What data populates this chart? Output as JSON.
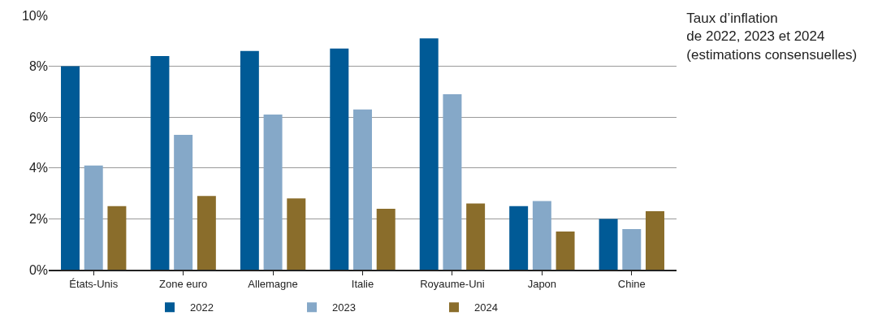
{
  "chart_data": {
    "type": "bar",
    "title": "Taux d’inflation\nde 2022, 2023 et 2024\n(estimations consensuelles)",
    "categories": [
      "États-Unis",
      "Zone euro",
      "Allemagne",
      "Italie",
      "Royaume-Uni",
      "Japon",
      "Chine"
    ],
    "series": [
      {
        "name": "2022",
        "color": "#005a96",
        "values": [
          8.0,
          8.4,
          8.6,
          8.7,
          9.1,
          2.5,
          2.0
        ]
      },
      {
        "name": "2023",
        "color": "#85a8c8",
        "values": [
          4.1,
          5.3,
          6.1,
          6.3,
          6.9,
          2.7,
          1.6
        ]
      },
      {
        "name": "2024",
        "color": "#8a6d2b",
        "values": [
          2.5,
          2.9,
          2.8,
          2.4,
          2.6,
          1.5,
          2.3
        ]
      }
    ],
    "ylim": [
      0,
      10
    ],
    "yticks": [
      {
        "value": 0,
        "label": "0%"
      },
      {
        "value": 2,
        "label": "2%"
      },
      {
        "value": 4,
        "label": "4%"
      },
      {
        "value": 6,
        "label": "6%"
      },
      {
        "value": 8,
        "label": "8%"
      },
      {
        "value": 10,
        "label": "10%"
      }
    ],
    "grid": "y",
    "legend": "bottom"
  }
}
